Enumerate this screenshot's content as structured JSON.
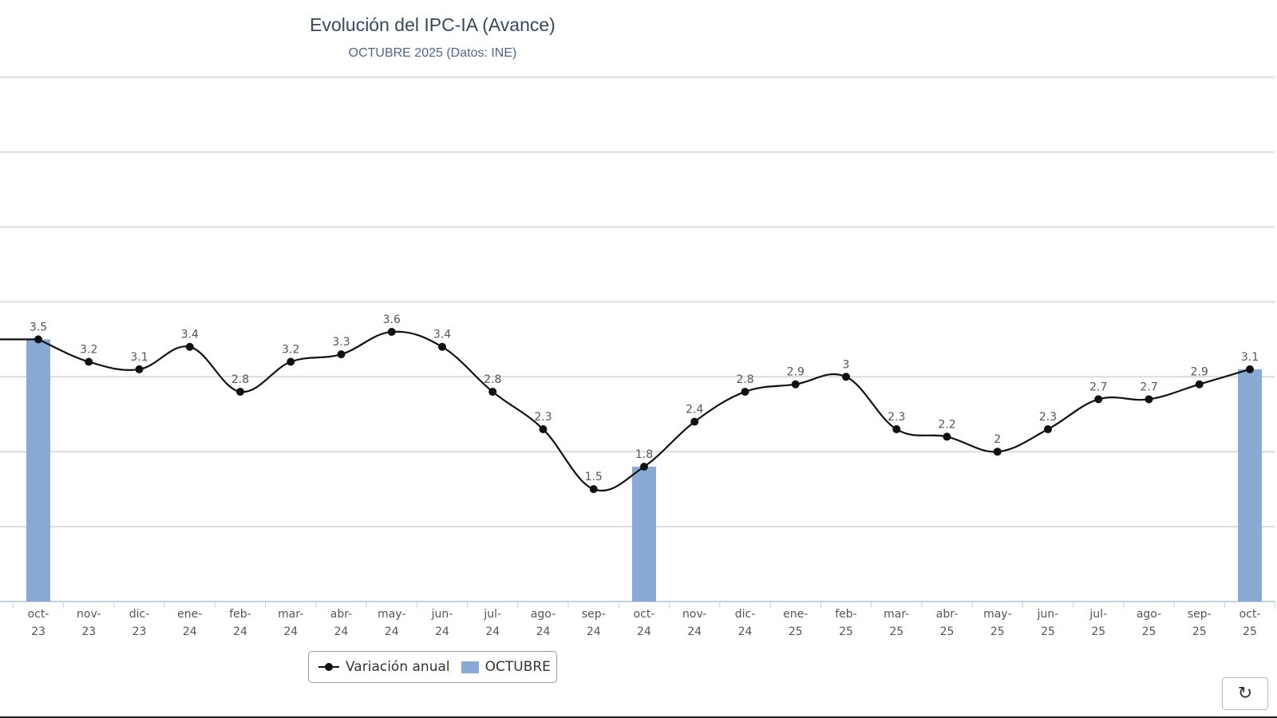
{
  "chart_data": {
    "type": "line+bar",
    "title": "Evolución del IPC-IA (Avance)",
    "subtitle": "OCTUBRE 2025 (Datos: INE)",
    "categories": [
      [
        "oct-",
        "23"
      ],
      [
        "nov-",
        "23"
      ],
      [
        "dic-",
        "23"
      ],
      [
        "ene-",
        "24"
      ],
      [
        "feb-",
        "24"
      ],
      [
        "mar-",
        "24"
      ],
      [
        "abr-",
        "24"
      ],
      [
        "may-",
        "24"
      ],
      [
        "jun-",
        "24"
      ],
      [
        "jul-",
        "24"
      ],
      [
        "ago-",
        "24"
      ],
      [
        "sep-",
        "24"
      ],
      [
        "oct-",
        "24"
      ],
      [
        "nov-",
        "24"
      ],
      [
        "dic-",
        "24"
      ],
      [
        "ene-",
        "25"
      ],
      [
        "feb-",
        "25"
      ],
      [
        "mar-",
        "25"
      ],
      [
        "abr-",
        "25"
      ],
      [
        "may-",
        "25"
      ],
      [
        "jun-",
        "25"
      ],
      [
        "jul-",
        "25"
      ],
      [
        "ago-",
        "25"
      ],
      [
        "sep-",
        "25"
      ],
      [
        "oct-",
        "25"
      ]
    ],
    "series": [
      {
        "name": "Variación anual",
        "type": "line",
        "color": "#111111",
        "values": [
          3.5,
          3.2,
          3.1,
          3.4,
          2.8,
          3.2,
          3.3,
          3.6,
          3.4,
          2.8,
          2.3,
          1.5,
          1.8,
          2.4,
          2.8,
          2.9,
          3,
          2.3,
          2.2,
          2,
          2.3,
          2.7,
          2.7,
          2.9,
          3.1
        ],
        "labels": [
          "3.5",
          "3.2",
          "3.1",
          "3.4",
          "2.8",
          "3.2",
          "3.3",
          "3.6",
          "3.4",
          "2.8",
          "2.3",
          "1.5",
          "1.8",
          "2.4",
          "2.8",
          "2.9",
          "3",
          "2.3",
          "2.2",
          "2",
          "2.3",
          "2.7",
          "2.7",
          "2.9",
          "3.1"
        ]
      },
      {
        "name": "OCTUBRE",
        "type": "bar",
        "color": "#88aad4",
        "values": [
          3.5,
          null,
          null,
          null,
          null,
          null,
          null,
          null,
          null,
          null,
          null,
          null,
          1.8,
          null,
          null,
          null,
          null,
          null,
          null,
          null,
          null,
          null,
          null,
          null,
          3.1
        ]
      }
    ],
    "ylim": [
      0,
      7
    ],
    "grid": true,
    "legend": "bottom-center"
  },
  "legend": {
    "line_label": "Variación anual",
    "bar_label": "OCTUBRE"
  },
  "controls": {
    "refresh_icon": "refresh-icon"
  }
}
